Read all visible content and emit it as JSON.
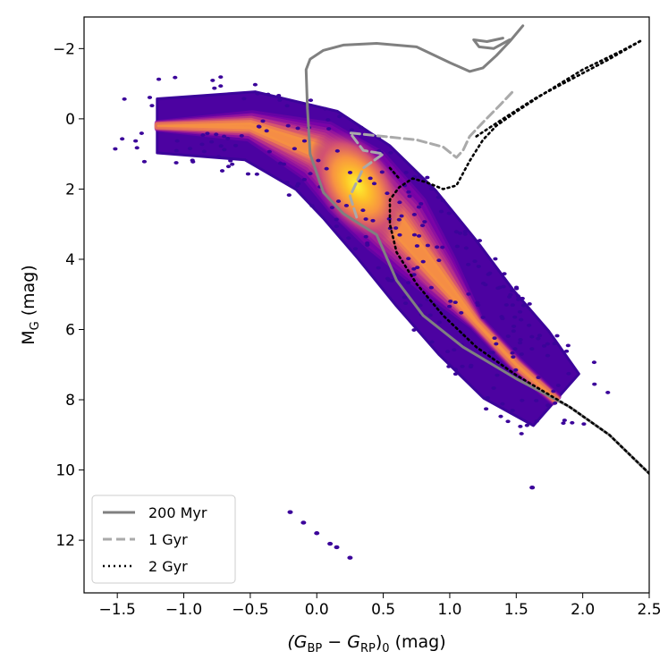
{
  "chart_data": {
    "type": "scatter",
    "title": "",
    "xlabel": {
      "main": "(G",
      "sub1": "BP",
      "minus": " − G",
      "sub2": "RP",
      "close": ")",
      "sub3": "0",
      "unit": " (mag)"
    },
    "ylabel": {
      "main": "M",
      "sub": "G",
      "unit": " (mag)"
    },
    "xlim": [
      -1.75,
      2.5
    ],
    "ylim": [
      13.5,
      -2.9
    ],
    "y_inverted": true,
    "x_ticks": [
      -1.5,
      -1.0,
      -0.5,
      0.0,
      0.5,
      1.0,
      1.5,
      2.0,
      2.5
    ],
    "x_tick_labels": [
      "−1.5",
      "−1.0",
      "−0.5",
      "0.0",
      "0.5",
      "1.0",
      "1.5",
      "2.0",
      "2.5"
    ],
    "y_ticks": [
      -2,
      0,
      2,
      4,
      6,
      8,
      10,
      12
    ],
    "y_tick_labels": [
      "−2",
      "0",
      "2",
      "4",
      "6",
      "8",
      "10",
      "12"
    ],
    "grid": false,
    "density_colormap": "plasma",
    "density_region": {
      "description": "main-sequence density band",
      "ridge": [
        [
          -1.2,
          0.2
        ],
        [
          -0.5,
          0.2
        ],
        [
          0.0,
          0.9
        ],
        [
          0.3,
          1.8
        ],
        [
          0.6,
          3.0
        ],
        [
          0.9,
          4.4
        ],
        [
          1.2,
          5.8
        ],
        [
          1.5,
          7.0
        ],
        [
          1.8,
          8.0
        ]
      ],
      "outliers": [
        [
          -0.2,
          11.2
        ],
        [
          -0.1,
          11.5
        ],
        [
          0.0,
          11.8
        ],
        [
          0.1,
          12.1
        ],
        [
          0.15,
          12.2
        ],
        [
          0.25,
          12.5
        ],
        [
          1.62,
          10.5
        ]
      ]
    },
    "legend": {
      "placement": "lower-left",
      "entries": [
        "200 Myr",
        "1 Gyr",
        "2 Gyr"
      ]
    },
    "series": [
      {
        "name": "200 Myr",
        "style": "solid",
        "color": "#808080",
        "points": [
          [
            2.5,
            10.1
          ],
          [
            2.2,
            9.0
          ],
          [
            1.9,
            8.2
          ],
          [
            1.5,
            7.4
          ],
          [
            1.1,
            6.5
          ],
          [
            0.8,
            5.6
          ],
          [
            0.6,
            4.6
          ],
          [
            0.45,
            3.3
          ],
          [
            0.2,
            2.7
          ],
          [
            0.05,
            2.1
          ],
          [
            -0.05,
            1.0
          ],
          [
            -0.07,
            -0.3
          ],
          [
            -0.08,
            -1.4
          ],
          [
            -0.05,
            -1.7
          ],
          [
            0.05,
            -1.95
          ],
          [
            0.2,
            -2.1
          ],
          [
            0.45,
            -2.15
          ],
          [
            0.75,
            -2.05
          ],
          [
            1.0,
            -1.6
          ],
          [
            1.15,
            -1.35
          ],
          [
            1.25,
            -1.45
          ],
          [
            1.35,
            -1.8
          ],
          [
            1.45,
            -2.2
          ],
          [
            1.55,
            -2.65
          ]
        ]
      },
      {
        "name": "200 Myr",
        "style": "solid",
        "color": "#808080",
        "points": [
          [
            1.45,
            -2.25
          ],
          [
            1.33,
            -2.0
          ],
          [
            1.22,
            -2.05
          ],
          [
            1.18,
            -2.25
          ],
          [
            1.28,
            -2.2
          ],
          [
            1.4,
            -2.3
          ]
        ]
      },
      {
        "name": "1 Gyr",
        "style": "dashed",
        "color": "#aaaaaa",
        "points": [
          [
            0.3,
            2.8
          ],
          [
            0.25,
            2.2
          ],
          [
            0.35,
            1.4
          ],
          [
            0.5,
            1.0
          ],
          [
            0.35,
            0.9
          ],
          [
            0.25,
            0.4
          ],
          [
            0.5,
            0.5
          ],
          [
            0.75,
            0.6
          ],
          [
            0.95,
            0.8
          ],
          [
            1.05,
            1.1
          ],
          [
            1.1,
            0.9
          ],
          [
            1.15,
            0.5
          ],
          [
            1.25,
            0.1
          ],
          [
            1.38,
            -0.4
          ],
          [
            1.48,
            -0.8
          ]
        ]
      },
      {
        "name": "2 Gyr",
        "style": "dotted",
        "color": "#000000",
        "points": [
          [
            2.5,
            10.1
          ],
          [
            2.2,
            9.0
          ],
          [
            1.9,
            8.2
          ],
          [
            1.5,
            7.3
          ],
          [
            1.2,
            6.5
          ],
          [
            0.95,
            5.6
          ],
          [
            0.75,
            4.7
          ],
          [
            0.6,
            3.8
          ],
          [
            0.55,
            3.0
          ],
          [
            0.55,
            2.3
          ],
          [
            0.62,
            1.95
          ],
          [
            0.72,
            1.7
          ],
          [
            0.82,
            1.8
          ],
          [
            0.95,
            2.0
          ],
          [
            1.05,
            1.9
          ],
          [
            1.15,
            1.2
          ],
          [
            1.25,
            0.6
          ],
          [
            1.35,
            0.2
          ],
          [
            1.5,
            -0.2
          ],
          [
            1.7,
            -0.7
          ],
          [
            2.0,
            -1.4
          ],
          [
            2.3,
            -1.95
          ],
          [
            2.45,
            -2.25
          ]
        ]
      },
      {
        "name": "2 Gyr",
        "style": "dotted",
        "color": "#000000",
        "points": [
          [
            1.2,
            0.5
          ],
          [
            1.4,
            0.0
          ],
          [
            1.65,
            -0.6
          ],
          [
            1.95,
            -1.2
          ],
          [
            2.2,
            -1.7
          ],
          [
            2.45,
            -2.25
          ]
        ]
      },
      {
        "name": "2 Gyr",
        "style": "dotted",
        "color": "#000000",
        "points": [
          [
            0.55,
            1.4
          ],
          [
            0.62,
            1.7
          ]
        ]
      }
    ]
  }
}
